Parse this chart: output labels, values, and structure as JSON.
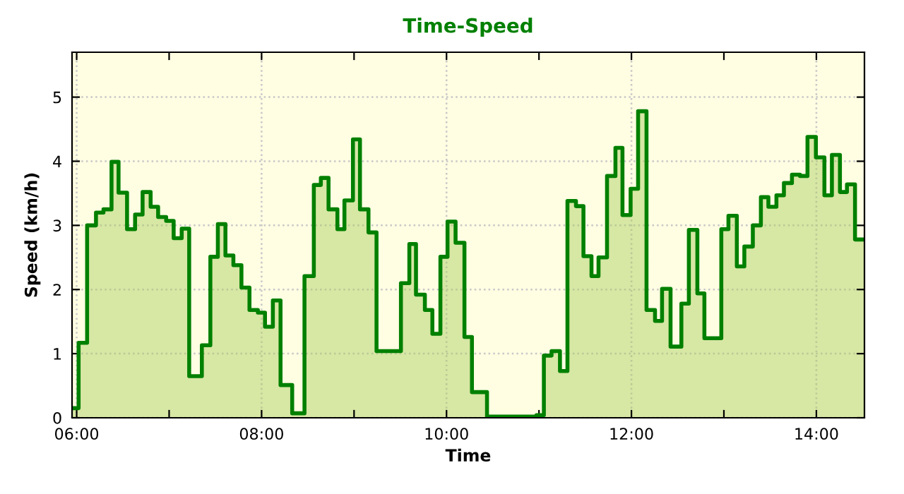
{
  "chart_data": {
    "type": "step",
    "title": "Time-Speed",
    "xlabel": "Time",
    "ylabel": "Speed (km/h)",
    "x": [
      5.95,
      6.021,
      6.113,
      6.209,
      6.29,
      6.377,
      6.453,
      6.545,
      6.632,
      6.713,
      6.8,
      6.881,
      6.968,
      7.049,
      7.136,
      7.217,
      7.354,
      7.446,
      7.527,
      7.609,
      7.695,
      7.782,
      7.869,
      7.96,
      8.037,
      8.122,
      8.205,
      8.331,
      8.464,
      8.565,
      8.641,
      8.724,
      8.82,
      8.896,
      8.988,
      9.064,
      9.156,
      9.243,
      9.507,
      9.598,
      9.67,
      9.766,
      9.847,
      9.934,
      10.011,
      10.098,
      10.194,
      10.275,
      10.438,
      10.973,
      11.053,
      11.136,
      11.227,
      11.308,
      11.4,
      11.481,
      11.568,
      11.644,
      11.736,
      11.827,
      11.903,
      11.991,
      12.072,
      12.163,
      12.255,
      12.331,
      12.423,
      12.54,
      12.621,
      12.713,
      12.789,
      12.972,
      13.049,
      13.14,
      13.221,
      13.313,
      13.4,
      13.481,
      13.568,
      13.649,
      13.736,
      13.823,
      13.904,
      13.995,
      14.087,
      14.168,
      14.255,
      14.331,
      14.418,
      14.52
    ],
    "series": [
      {
        "color": "#008000",
        "values": [
          0.15,
          1.17,
          3.0,
          3.2,
          3.25,
          3.99,
          3.51,
          2.94,
          3.17,
          3.52,
          3.29,
          3.13,
          3.07,
          2.8,
          2.95,
          0.65,
          1.13,
          2.51,
          3.02,
          2.53,
          2.38,
          2.03,
          1.68,
          1.64,
          1.42,
          1.83,
          0.51,
          0.07,
          2.21,
          3.63,
          3.74,
          3.25,
          2.94,
          3.39,
          4.34,
          3.25,
          2.89,
          1.04,
          2.1,
          2.71,
          1.92,
          1.68,
          1.31,
          2.51,
          3.06,
          2.73,
          1.26,
          0.4,
          0.02,
          0.04,
          0.97,
          1.04,
          0.73,
          3.38,
          3.3,
          2.52,
          2.21,
          2.5,
          3.77,
          4.21,
          3.16,
          3.57,
          4.78,
          1.68,
          1.51,
          2.01,
          1.11,
          1.78,
          2.93,
          1.94,
          1.24,
          2.94,
          3.15,
          2.36,
          2.67,
          3.0,
          3.44,
          3.29,
          3.47,
          3.66,
          3.79,
          3.77,
          4.38,
          4.06,
          3.47,
          4.1,
          3.52,
          3.64,
          2.78,
          2.78
        ]
      }
    ],
    "xlim": [
      5.95,
      14.52
    ],
    "xticks": [
      {
        "value": 6,
        "label": "06:00"
      },
      {
        "value": 7,
        "label": null
      },
      {
        "value": 8,
        "label": "08:00"
      },
      {
        "value": 9,
        "label": null
      },
      {
        "value": 10,
        "label": "10:00"
      },
      {
        "value": 11,
        "label": null
      },
      {
        "value": 12,
        "label": "12:00"
      },
      {
        "value": 13,
        "label": null
      },
      {
        "value": 14,
        "label": "14:00"
      }
    ],
    "ylim": [
      0,
      5.7
    ],
    "yticks": [
      0,
      1,
      2,
      3,
      4,
      5
    ],
    "grid": true,
    "line_style": "solid"
  }
}
